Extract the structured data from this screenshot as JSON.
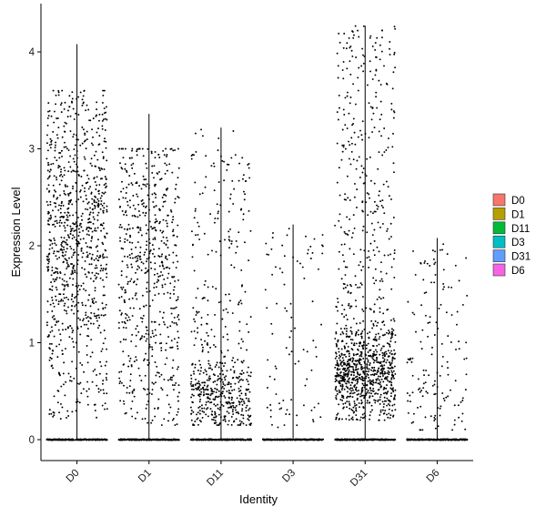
{
  "chart_data": {
    "type": "scatter",
    "subtype": "jittered strip plot (violin outlines collapsed to vertical lines)",
    "xlabel": "Identity",
    "ylabel": "Expression Level",
    "ylim": [
      -0.25,
      4.3
    ],
    "yticks": [
      0,
      1,
      2,
      3,
      4
    ],
    "categories": [
      "D0",
      "D1",
      "D11",
      "D3",
      "D31",
      "D6"
    ],
    "x_tick_rotation_deg": -45,
    "grid": false,
    "legend": {
      "placement": "right",
      "entries": [
        {
          "label": "D0",
          "color": "#F8766D"
        },
        {
          "label": "D1",
          "color": "#B79F00"
        },
        {
          "label": "D11",
          "color": "#00BA38"
        },
        {
          "label": "D3",
          "color": "#00BFC4"
        },
        {
          "label": "D31",
          "color": "#619CFF"
        },
        {
          "label": "D6",
          "color": "#F564E3"
        }
      ]
    },
    "series": [
      {
        "category": "D0",
        "max": 4.08,
        "nonzero_points": 950,
        "zero_points": 300,
        "dist": {
          "type": "uniform",
          "lo": 0.2,
          "hi": 3.6,
          "peak": 2.1,
          "spread": 0.6,
          "mix": 0.55
        }
      },
      {
        "category": "D1",
        "max": 3.36,
        "nonzero_points": 620,
        "zero_points": 300,
        "dist": {
          "type": "mixed",
          "lo": 0.15,
          "hi": 3.0,
          "peak": 1.8,
          "spread": 0.7,
          "mix": 0.4
        }
      },
      {
        "category": "D11",
        "max": 3.22,
        "nonzero_points": 560,
        "zero_points": 300,
        "dist": {
          "type": "skewed",
          "lo": 0.15,
          "hi": 3.2,
          "peak": 0.4,
          "spread": 0.25,
          "mix": 0.55
        }
      },
      {
        "category": "D3",
        "max": 2.22,
        "nonzero_points": 90,
        "zero_points": 300,
        "dist": {
          "type": "uniform",
          "lo": 0.1,
          "hi": 2.2,
          "peak": 1.0,
          "spread": 0.6,
          "mix": 0.0
        }
      },
      {
        "category": "D31",
        "max": 4.27,
        "nonzero_points": 1150,
        "zero_points": 300,
        "dist": {
          "type": "skewed",
          "lo": 0.2,
          "hi": 4.27,
          "peak": 0.6,
          "spread": 0.25,
          "mix": 0.5
        }
      },
      {
        "category": "D6",
        "max": 2.08,
        "nonzero_points": 150,
        "zero_points": 300,
        "dist": {
          "type": "mixed",
          "lo": 0.1,
          "hi": 2.08,
          "peak": 0.5,
          "spread": 0.3,
          "mix": 0.45
        }
      }
    ],
    "point_color": "#000000"
  }
}
